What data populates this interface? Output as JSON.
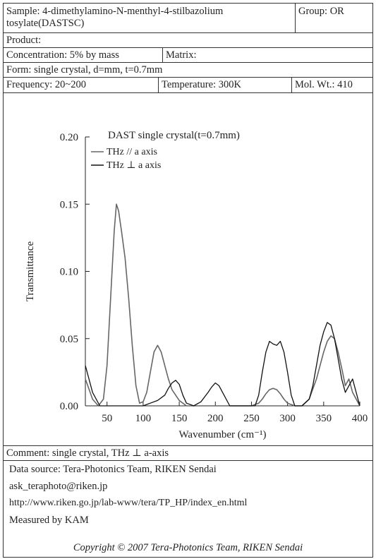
{
  "header": {
    "sample": "Sample: 4-dimethylamino-N-menthyl-4-stilbazolium tosylate(DASTSC)",
    "group": "Group: OR",
    "product": "Product:",
    "concentration": "Concentration: 5% by mass",
    "matrix": "Matrix:",
    "form": "Form: single crystal, d=mm, t=0.7mm",
    "frequency": "Frequency: 20~200",
    "temperature": "Temperature: 300K",
    "mol_wt": "Mol. Wt.: 410"
  },
  "footer": {
    "comment": "Comment: single crystal, THz ⊥ a-axis",
    "source": "Data source: Tera-Photonics Team, RIKEN Sendai",
    "email": "ask_teraphoto@riken.jp",
    "url": "http://www.riken.go.jp/lab-www/tera/TP_HP/index_en.html",
    "measured": "Measured by KAM",
    "copyright": "Copyright © 2007 Tera-Photonics Team, RIKEN Sendai"
  },
  "chart_data": {
    "type": "line",
    "title": "DAST single crystal(t=0.7mm)",
    "xlabel": "Wavenumber (cm⁻¹)",
    "ylabel": "Transmittance",
    "xlim": [
      20,
      400
    ],
    "ylim": [
      0,
      0.2
    ],
    "xticks": [
      50,
      100,
      150,
      200,
      250,
      300,
      350,
      400
    ],
    "yticks": [
      0.0,
      0.05,
      0.1,
      0.15,
      0.2
    ],
    "ytick_labels": [
      "0.00",
      "0.05",
      "0.10",
      "0.15",
      "0.20"
    ],
    "legend_position": "top-left",
    "series": [
      {
        "name": "THz // a axis",
        "color": "#666666",
        "x": [
          20,
          30,
          38,
          45,
          50,
          55,
          60,
          63,
          66,
          70,
          75,
          80,
          85,
          90,
          95,
          100,
          105,
          110,
          115,
          120,
          125,
          130,
          135,
          140,
          150,
          160,
          170,
          180,
          190,
          200,
          210,
          220,
          230,
          240,
          250,
          260,
          265,
          270,
          275,
          280,
          285,
          290,
          295,
          300,
          310,
          320,
          330,
          340,
          345,
          350,
          355,
          360,
          365,
          370,
          375,
          380,
          385,
          390,
          400
        ],
        "y": [
          0.02,
          0.005,
          0.0,
          0.005,
          0.03,
          0.08,
          0.13,
          0.15,
          0.145,
          0.13,
          0.11,
          0.08,
          0.045,
          0.015,
          0.002,
          0.003,
          0.01,
          0.025,
          0.04,
          0.045,
          0.04,
          0.03,
          0.02,
          0.012,
          0.004,
          0.0,
          0.0,
          0.0,
          0.0,
          0.0,
          0.0,
          0.0,
          0.0,
          0.0,
          0.0,
          0.002,
          0.005,
          0.009,
          0.012,
          0.013,
          0.012,
          0.009,
          0.005,
          0.002,
          0.0,
          0.0,
          0.005,
          0.02,
          0.03,
          0.04,
          0.048,
          0.052,
          0.05,
          0.04,
          0.028,
          0.015,
          0.02,
          0.01,
          0.0
        ]
      },
      {
        "name": "THz ⊥ a axis",
        "color": "#111111",
        "x": [
          20,
          30,
          40,
          50,
          60,
          70,
          80,
          90,
          100,
          110,
          120,
          130,
          135,
          140,
          145,
          150,
          155,
          160,
          170,
          180,
          190,
          195,
          200,
          205,
          210,
          220,
          230,
          240,
          250,
          255,
          260,
          265,
          270,
          275,
          280,
          285,
          290,
          295,
          300,
          305,
          310,
          320,
          330,
          335,
          340,
          345,
          350,
          355,
          360,
          365,
          370,
          375,
          380,
          390,
          400
        ],
        "y": [
          0.03,
          0.01,
          0.0,
          0.0,
          0.0,
          0.0,
          0.0,
          0.0,
          0.0,
          0.002,
          0.004,
          0.008,
          0.013,
          0.017,
          0.019,
          0.016,
          0.008,
          0.002,
          0.0,
          0.003,
          0.01,
          0.014,
          0.017,
          0.015,
          0.01,
          0.0,
          0.0,
          0.0,
          0.0,
          0.0,
          0.008,
          0.025,
          0.04,
          0.048,
          0.046,
          0.045,
          0.048,
          0.04,
          0.025,
          0.008,
          0.0,
          0.0,
          0.005,
          0.015,
          0.03,
          0.045,
          0.055,
          0.062,
          0.06,
          0.05,
          0.035,
          0.02,
          0.01,
          0.02,
          0.0
        ]
      }
    ]
  }
}
